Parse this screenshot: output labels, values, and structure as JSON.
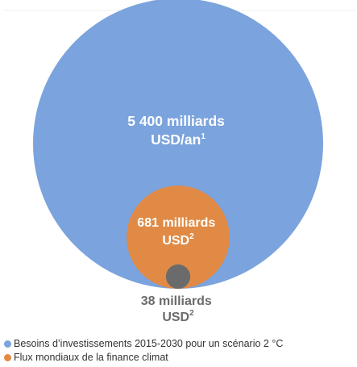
{
  "chart_data": {
    "type": "bubble",
    "title": "",
    "bubbles": [
      {
        "value": 5400,
        "unit": "milliards USD/an",
        "label_line1": "5 400 milliards",
        "label_line2": "USD/an",
        "label_sup": "1",
        "color": "#7ba3dd",
        "text_color": "#ffffff"
      },
      {
        "value": 681,
        "unit": "milliards USD",
        "label_line1": "681 milliards",
        "label_line2": "USD",
        "label_sup": "2",
        "color": "#e08a45",
        "text_color": "#ffffff"
      },
      {
        "value": 38,
        "unit": "milliards USD",
        "label_line1": "38 milliards",
        "label_line2": "USD",
        "label_sup": "2",
        "color": "#6b6b6b",
        "text_color": "#6b6b6b"
      }
    ],
    "legend": {
      "placement": "bottom-left",
      "entries": [
        {
          "label": "Besoins d’investissements 2015-2030 pour un scénario 2 °C",
          "color": "#7ba3dd"
        },
        {
          "label": "Flux mondiaux de la finance climat",
          "color": "#e08a45"
        }
      ]
    }
  }
}
